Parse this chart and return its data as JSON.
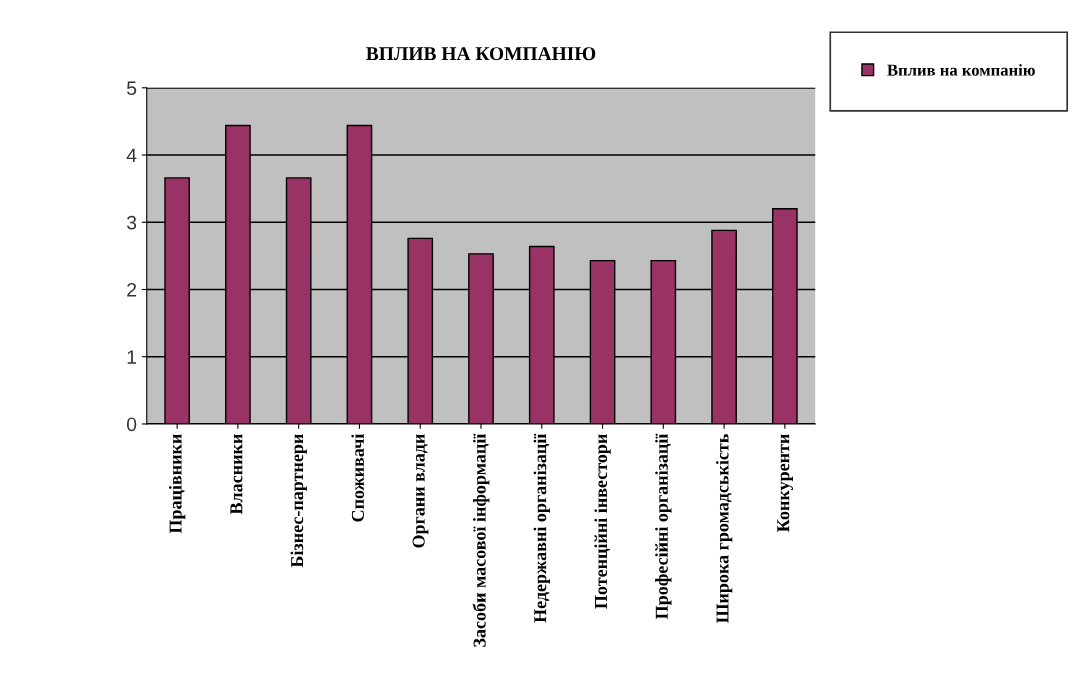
{
  "chart_data": {
    "type": "bar",
    "title": "ВПЛИВ НА КОМПАНІЮ",
    "categories": [
      "Працівники",
      "Власники",
      "Бізнес-партнери",
      "Споживачі",
      "Органи влади",
      "Засоби масової інформації",
      "Недержавні організації",
      "Потенційні інвестори",
      "Професійні організації",
      "Широка громадськість",
      "Конкуренти"
    ],
    "series": [
      {
        "name": "Вплив на компанію",
        "color": "#993366",
        "values": [
          3.66,
          4.44,
          3.66,
          4.44,
          2.76,
          2.53,
          2.64,
          2.43,
          2.43,
          2.88,
          3.2
        ]
      }
    ],
    "ylim": [
      0,
      5
    ],
    "yticks": [
      0,
      1,
      2,
      3,
      4,
      5
    ],
    "grid": "y",
    "legend": "top right"
  }
}
